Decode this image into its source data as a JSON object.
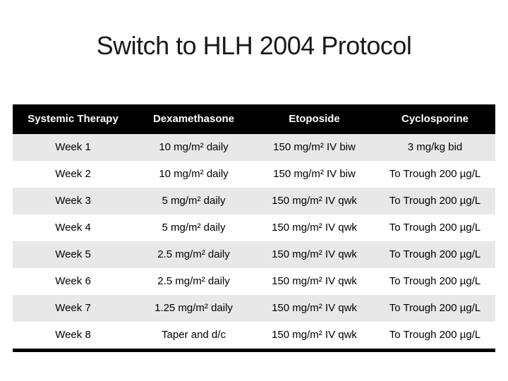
{
  "slide": {
    "title": "Switch to HLH 2004 Protocol"
  },
  "table": {
    "columns": [
      "Systemic Therapy",
      "Dexamethasone",
      "Etoposide",
      "Cyclosporine"
    ],
    "rows": [
      [
        "Week 1",
        "10 mg/m² daily",
        "150 mg/m² IV biw",
        "3 mg/kg bid"
      ],
      [
        "Week 2",
        "10 mg/m² daily",
        "150 mg/m² IV biw",
        "To Trough 200 µg/L"
      ],
      [
        "Week 3",
        "5 mg/m² daily",
        "150 mg/m² IV qwk",
        "To Trough 200 µg/L"
      ],
      [
        "Week 4",
        "5 mg/m² daily",
        "150 mg/m² IV qwk",
        "To Trough 200 µg/L"
      ],
      [
        "Week 5",
        "2.5 mg/m² daily",
        "150 mg/m² IV qwk",
        "To Trough 200 µg/L"
      ],
      [
        "Week 6",
        "2.5 mg/m² daily",
        "150 mg/m² IV qwk",
        "To Trough 200 µg/L"
      ],
      [
        "Week 7",
        "1.25 mg/m² daily",
        "150 mg/m² IV qwk",
        "To Trough 200 µg/L"
      ],
      [
        "Week 8",
        "Taper and d/c",
        "150 mg/m² IV qwk",
        "To Trough 200 µg/L"
      ]
    ],
    "colors": {
      "header_bg": "#000000",
      "header_text": "#ffffff",
      "band_bg": "#e8e8e8",
      "body_text": "#000000"
    }
  }
}
